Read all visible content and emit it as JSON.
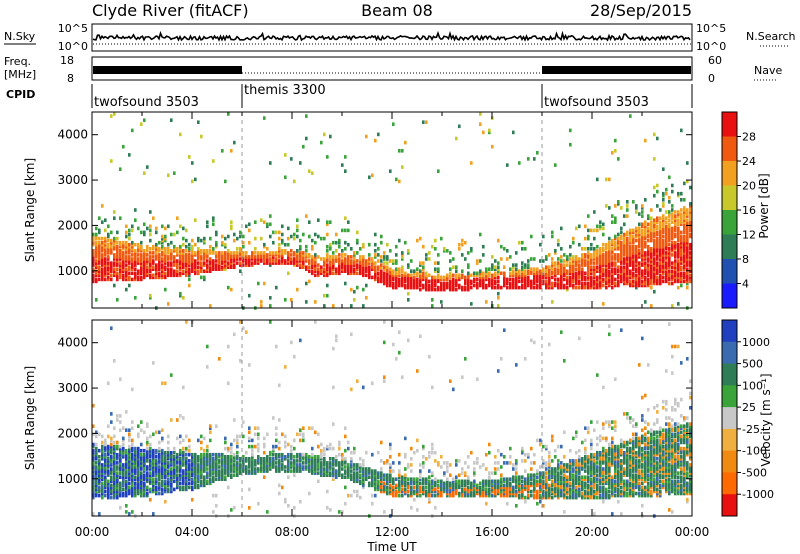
{
  "header": {
    "station": "Clyde River (fitACF)",
    "beam": "Beam 08",
    "date": "28/Sep/2015"
  },
  "top_panels": {
    "nsky_label": "N.Sky",
    "nsearch_label": "N.Search",
    "noise_ticks": [
      "10^5",
      "10^0"
    ],
    "freq_label_1": "Freq.",
    "freq_label_2": "[MHz]",
    "freq_ticks": [
      "18",
      "8"
    ],
    "nave_label": "Nave",
    "nave_ticks": [
      "60",
      "0"
    ],
    "cpid_label": "CPID",
    "cpid_segments": [
      {
        "name": "twofsound 3503",
        "start_hour": 0,
        "end_hour": 6
      },
      {
        "name": "themis 3300",
        "start_hour": 6,
        "end_hour": 18
      },
      {
        "name": "twofsound 3503",
        "start_hour": 18,
        "end_hour": 24
      }
    ]
  },
  "chart_data": [
    {
      "type": "heatmap",
      "name": "power",
      "ylabel": "Slant Range [km]",
      "xlabel": "Time UT",
      "x_tick_labels": [
        "00:00",
        "04:00",
        "08:00",
        "12:00",
        "16:00",
        "20:00",
        "00:00"
      ],
      "xlim_hours": [
        0,
        24
      ],
      "ylim_km": [
        180,
        4500
      ],
      "y_ticks": [
        1000,
        2000,
        3000,
        4000
      ],
      "colorbar_label": "Power [dB]",
      "colorbar_ticks": [
        "4",
        "8",
        "12",
        "16",
        "20",
        "24",
        "28"
      ],
      "colors": [
        "#1a1aff",
        "#2050b0",
        "#2f7d56",
        "#3aa43a",
        "#c8c82a",
        "#f2a020",
        "#f05a10",
        "#e81010"
      ],
      "band": [
        {
          "hour": 0,
          "lower_km": 800,
          "upper_km": 1800
        },
        {
          "hour": 2,
          "lower_km": 850,
          "upper_km": 1600
        },
        {
          "hour": 4,
          "lower_km": 950,
          "upper_km": 1500
        },
        {
          "hour": 6,
          "lower_km": 1150,
          "upper_km": 1450
        },
        {
          "hour": 8,
          "lower_km": 1200,
          "upper_km": 1500
        },
        {
          "hour": 9,
          "lower_km": 900,
          "upper_km": 1350
        },
        {
          "hour": 10,
          "lower_km": 1000,
          "upper_km": 1400
        },
        {
          "hour": 11,
          "lower_km": 900,
          "upper_km": 1350
        },
        {
          "hour": 12,
          "lower_km": 650,
          "upper_km": 1050
        },
        {
          "hour": 14,
          "lower_km": 600,
          "upper_km": 950
        },
        {
          "hour": 16,
          "lower_km": 650,
          "upper_km": 1000
        },
        {
          "hour": 18,
          "lower_km": 650,
          "upper_km": 1100
        },
        {
          "hour": 20,
          "lower_km": 650,
          "upper_km": 1500
        },
        {
          "hour": 22,
          "lower_km": 700,
          "upper_km": 2100
        },
        {
          "hour": 24,
          "lower_km": 800,
          "upper_km": 2500
        }
      ]
    },
    {
      "type": "heatmap",
      "name": "velocity",
      "ylabel": "Slant Range [km]",
      "xlabel": "Time UT",
      "x_tick_labels": [
        "00:00",
        "04:00",
        "08:00",
        "12:00",
        "16:00",
        "20:00",
        "00:00"
      ],
      "xlim_hours": [
        0,
        24
      ],
      "ylim_km": [
        180,
        4500
      ],
      "y_ticks": [
        1000,
        2000,
        3000,
        4000
      ],
      "colorbar_label": "Velocity [m s⁻¹]",
      "colorbar_ticks": [
        "1000",
        "500",
        "100",
        "25",
        "-25",
        "-100",
        "-500",
        "-1000"
      ],
      "colors": [
        "#2040c0",
        "#3a6ab0",
        "#2f7d56",
        "#3aa43a",
        "#c8c8c8",
        "#f0b040",
        "#f08a10",
        "#ff6a00",
        "#e81010"
      ],
      "band": [
        {
          "hour": 0,
          "lower_km": 600,
          "upper_km": 1800
        },
        {
          "hour": 2,
          "lower_km": 650,
          "upper_km": 1700
        },
        {
          "hour": 4,
          "lower_km": 800,
          "upper_km": 1600
        },
        {
          "hour": 6,
          "lower_km": 1150,
          "upper_km": 1550
        },
        {
          "hour": 8,
          "lower_km": 1200,
          "upper_km": 1600
        },
        {
          "hour": 10,
          "lower_km": 1050,
          "upper_km": 1450
        },
        {
          "hour": 12,
          "lower_km": 650,
          "upper_km": 1100
        },
        {
          "hour": 14,
          "lower_km": 650,
          "upper_km": 1000
        },
        {
          "hour": 16,
          "lower_km": 650,
          "upper_km": 1000
        },
        {
          "hour": 18,
          "lower_km": 600,
          "upper_km": 1200
        },
        {
          "hour": 20,
          "lower_km": 600,
          "upper_km": 1600
        },
        {
          "hour": 22,
          "lower_km": 650,
          "upper_km": 2000
        },
        {
          "hour": 24,
          "lower_km": 700,
          "upper_km": 2300
        }
      ]
    }
  ]
}
